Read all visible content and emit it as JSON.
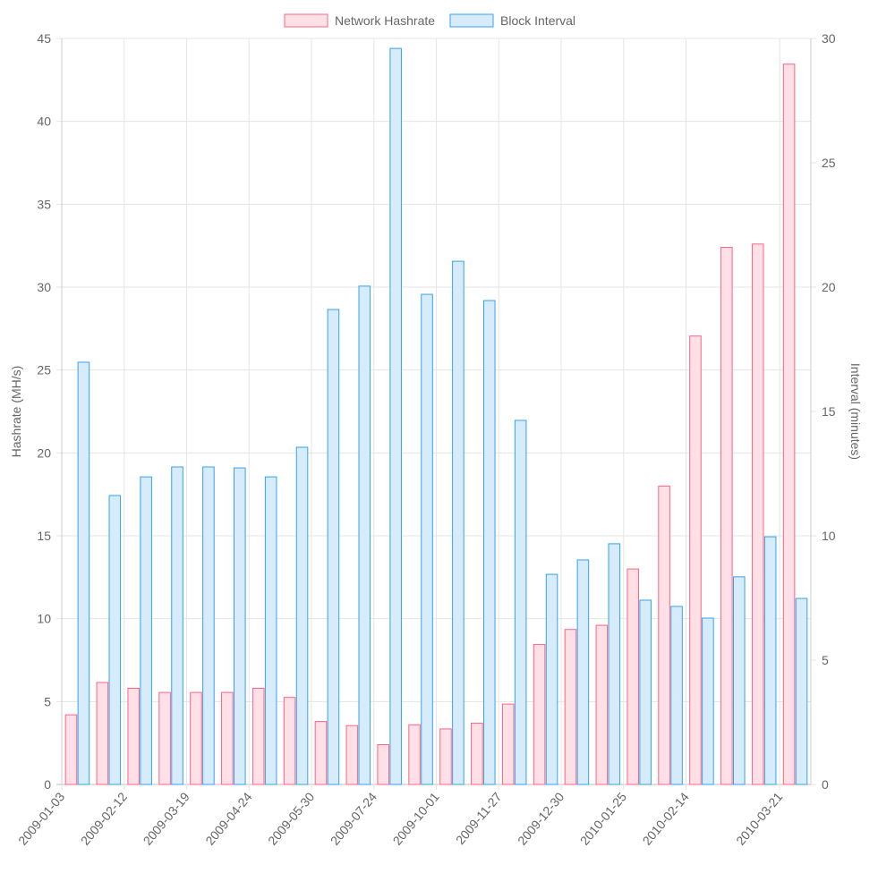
{
  "chart_data": {
    "type": "bar",
    "categories": [
      "2009-01-03",
      null,
      "2009-02-12",
      null,
      "2009-03-19",
      null,
      "2009-04-24",
      null,
      "2009-05-30",
      null,
      "2009-07-24",
      null,
      "2009-10-01",
      null,
      "2009-11-27",
      null,
      "2009-12-30",
      null,
      "2010-01-25",
      null,
      "2010-02-14",
      null,
      null,
      "2010-03-21"
    ],
    "series": [
      {
        "name": "Network Hashrate",
        "axis": "left",
        "fill": "#ffe0e6",
        "stroke": "#ff6384",
        "values": [
          4.2,
          6.15,
          5.8,
          5.55,
          5.55,
          5.55,
          5.8,
          5.25,
          3.8,
          3.55,
          2.4,
          3.6,
          3.35,
          3.7,
          4.85,
          8.45,
          9.35,
          9.6,
          13.0,
          18.0,
          27.05,
          32.4,
          32.6,
          43.45
        ]
      },
      {
        "name": "Block Interval",
        "axis": "right",
        "fill": "#d7ecfb",
        "stroke": "#36a2eb",
        "values": [
          16.98,
          11.62,
          12.37,
          12.77,
          12.77,
          12.73,
          12.37,
          13.56,
          19.1,
          20.04,
          29.6,
          19.71,
          21.04,
          19.46,
          14.64,
          8.45,
          9.03,
          9.68,
          7.41,
          7.16,
          6.69,
          8.35,
          9.96,
          7.48
        ]
      }
    ],
    "ylabel": "Hashrate (MH/s)",
    "ylim": [
      0,
      45
    ],
    "yticks": [
      0,
      5,
      10,
      15,
      20,
      25,
      30,
      35,
      40,
      45
    ],
    "y2label": "Interval (minutes)",
    "y2lim": [
      0,
      30
    ],
    "y2ticks": [
      0,
      5,
      10,
      15,
      20,
      25,
      30
    ],
    "grid": true,
    "legend": "top"
  }
}
